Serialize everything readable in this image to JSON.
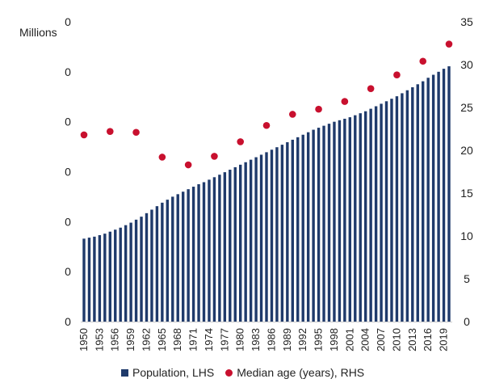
{
  "chart_data": {
    "type": "bar+scatter",
    "left_axis_unit": "Millions",
    "left_axis": {
      "ylim": [
        0,
        60
      ],
      "tick_labels": [
        "0",
        "0",
        "0",
        "0",
        "0",
        "0",
        "0"
      ]
    },
    "right_axis": {
      "ylim": [
        0,
        35
      ],
      "ticks": [
        0,
        5,
        10,
        15,
        20,
        25,
        30,
        35
      ]
    },
    "x_tick_labels": [
      "1950",
      "1953",
      "1956",
      "1959",
      "1962",
      "1965",
      "1968",
      "1971",
      "1974",
      "1977",
      "1980",
      "1983",
      "1986",
      "1989",
      "1992",
      "1995",
      "1998",
      "2001",
      "2004",
      "2007",
      "2010",
      "2013",
      "2016",
      "2019"
    ],
    "series": [
      {
        "name": "Population, LHS",
        "type": "bar",
        "axis": "left",
        "color": "#1f3a6b",
        "x": [
          1950,
          1951,
          1952,
          1953,
          1954,
          1955,
          1956,
          1957,
          1958,
          1959,
          1960,
          1961,
          1962,
          1963,
          1964,
          1965,
          1966,
          1967,
          1968,
          1969,
          1970,
          1971,
          1972,
          1973,
          1974,
          1975,
          1976,
          1977,
          1978,
          1979,
          1980,
          1981,
          1982,
          1983,
          1984,
          1985,
          1986,
          1987,
          1988,
          1989,
          1990,
          1991,
          1992,
          1993,
          1994,
          1995,
          1996,
          1997,
          1998,
          1999,
          2000,
          2001,
          2002,
          2003,
          2004,
          2005,
          2006,
          2007,
          2008,
          2009,
          2010,
          2011,
          2012,
          2013,
          2014,
          2015,
          2016,
          2017,
          2018,
          2019,
          2020
        ],
        "values": [
          16.6,
          16.8,
          17.0,
          17.3,
          17.6,
          18.0,
          18.4,
          18.8,
          19.3,
          19.8,
          20.4,
          21.0,
          21.7,
          22.4,
          23.1,
          23.8,
          24.4,
          25.0,
          25.5,
          26.0,
          26.5,
          27.0,
          27.5,
          27.9,
          28.4,
          28.9,
          29.4,
          29.9,
          30.4,
          30.9,
          31.4,
          31.9,
          32.4,
          32.9,
          33.4,
          33.9,
          34.4,
          34.9,
          35.4,
          35.9,
          36.4,
          36.9,
          37.4,
          37.9,
          38.4,
          38.8,
          39.2,
          39.6,
          40.0,
          40.3,
          40.6,
          40.9,
          41.3,
          41.7,
          42.1,
          42.6,
          43.1,
          43.6,
          44.1,
          44.6,
          45.1,
          45.7,
          46.3,
          46.9,
          47.5,
          48.1,
          48.8,
          49.4,
          50.0,
          50.6,
          51.1
        ]
      },
      {
        "name": "Median age (years), RHS",
        "type": "scatter",
        "axis": "right",
        "color": "#c8102e",
        "x": [
          1950,
          1955,
          1960,
          1965,
          1970,
          1975,
          1980,
          1985,
          1990,
          1995,
          2000,
          2005,
          2010,
          2015,
          2020
        ],
        "values": [
          21.8,
          22.2,
          22.1,
          19.2,
          18.3,
          19.3,
          21.0,
          22.9,
          24.2,
          24.8,
          25.7,
          27.2,
          28.8,
          30.4,
          32.4
        ]
      }
    ]
  }
}
